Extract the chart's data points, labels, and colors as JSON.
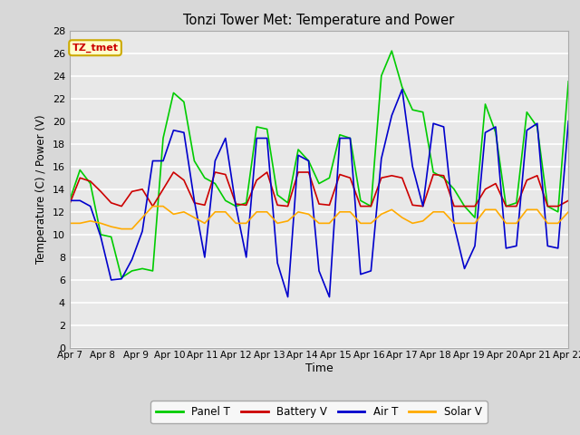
{
  "title": "Tonzi Tower Met: Temperature and Power",
  "xlabel": "Time",
  "ylabel": "Temperature (C) / Power (V)",
  "ylim": [
    0,
    28
  ],
  "yticks": [
    0,
    2,
    4,
    6,
    8,
    10,
    12,
    14,
    16,
    18,
    20,
    22,
    24,
    26,
    28
  ],
  "bg_color": "#d8d8d8",
  "plot_bg": "#e8e8e8",
  "annotation_text": "TZ_tmet",
  "annotation_color": "#cc0000",
  "annotation_bg": "#ffffcc",
  "annotation_border": "#ccaa00",
  "legend_entries": [
    "Panel T",
    "Battery V",
    "Air T",
    "Solar V"
  ],
  "colors": {
    "panel": "#00cc00",
    "battery": "#cc0000",
    "air": "#0000cc",
    "solar": "#ffaa00"
  },
  "x_tick_labels": [
    "Apr 7",
    "Apr 8",
    "Apr 9",
    "Apr 10",
    "Apr 11",
    "Apr 12",
    "Apr 13",
    "Apr 14",
    "Apr 15",
    "Apr 16",
    "Apr 17",
    "Apr 18",
    "Apr 19",
    "Apr 20",
    "Apr 21",
    "Apr 22"
  ],
  "x_tick_positions": [
    0,
    1,
    2,
    3,
    4,
    5,
    6,
    7,
    8,
    9,
    10,
    11,
    12,
    13,
    14,
    15
  ],
  "panel_t": [
    13.0,
    15.7,
    14.5,
    10.0,
    9.8,
    6.2,
    6.8,
    7.0,
    6.8,
    18.5,
    22.5,
    21.7,
    16.5,
    15.0,
    14.5,
    13.0,
    12.5,
    12.8,
    19.5,
    19.3,
    13.5,
    12.8,
    17.5,
    16.5,
    14.5,
    15.0,
    18.8,
    18.5,
    13.0,
    12.5,
    24.0,
    26.2,
    23.0,
    21.0,
    20.8,
    15.5,
    15.0,
    14.0,
    12.5,
    11.5,
    21.5,
    19.0,
    12.5,
    12.8,
    20.8,
    19.5,
    12.5,
    12.0,
    23.5
  ],
  "battery_v": [
    12.7,
    15.0,
    14.7,
    13.8,
    12.8,
    12.5,
    13.8,
    14.0,
    12.5,
    14.0,
    15.5,
    14.8,
    12.8,
    12.6,
    15.5,
    15.3,
    12.7,
    12.6,
    14.8,
    15.5,
    12.6,
    12.5,
    15.5,
    15.5,
    12.7,
    12.6,
    15.3,
    15.0,
    12.5,
    12.5,
    15.0,
    15.2,
    15.0,
    12.6,
    12.5,
    15.3,
    15.2,
    12.5,
    12.5,
    12.5,
    14.0,
    14.5,
    12.5,
    12.5,
    14.8,
    15.2,
    12.5,
    12.5,
    13.0
  ],
  "air_t": [
    13.0,
    13.0,
    12.5,
    9.8,
    6.0,
    6.1,
    7.8,
    10.3,
    16.5,
    16.5,
    19.2,
    19.0,
    13.0,
    8.0,
    16.5,
    18.5,
    12.5,
    8.0,
    18.5,
    18.5,
    7.5,
    4.5,
    17.0,
    16.5,
    6.8,
    4.5,
    18.5,
    18.5,
    6.5,
    6.8,
    16.7,
    20.5,
    22.8,
    16.0,
    12.5,
    19.8,
    19.5,
    10.8,
    7.0,
    9.0,
    19.0,
    19.5,
    8.8,
    9.0,
    19.2,
    19.8,
    9.0,
    8.8,
    20.0
  ],
  "solar_v": [
    11.0,
    11.0,
    11.2,
    11.0,
    10.7,
    10.5,
    10.5,
    11.5,
    12.5,
    12.5,
    11.8,
    12.0,
    11.5,
    11.0,
    12.0,
    12.0,
    11.0,
    11.0,
    12.0,
    12.0,
    11.0,
    11.2,
    12.0,
    11.8,
    11.0,
    11.0,
    12.0,
    12.0,
    11.0,
    11.0,
    11.8,
    12.2,
    11.5,
    11.0,
    11.2,
    12.0,
    12.0,
    11.0,
    11.0,
    11.0,
    12.2,
    12.2,
    11.0,
    11.0,
    12.2,
    12.2,
    11.0,
    11.0,
    12.0
  ]
}
